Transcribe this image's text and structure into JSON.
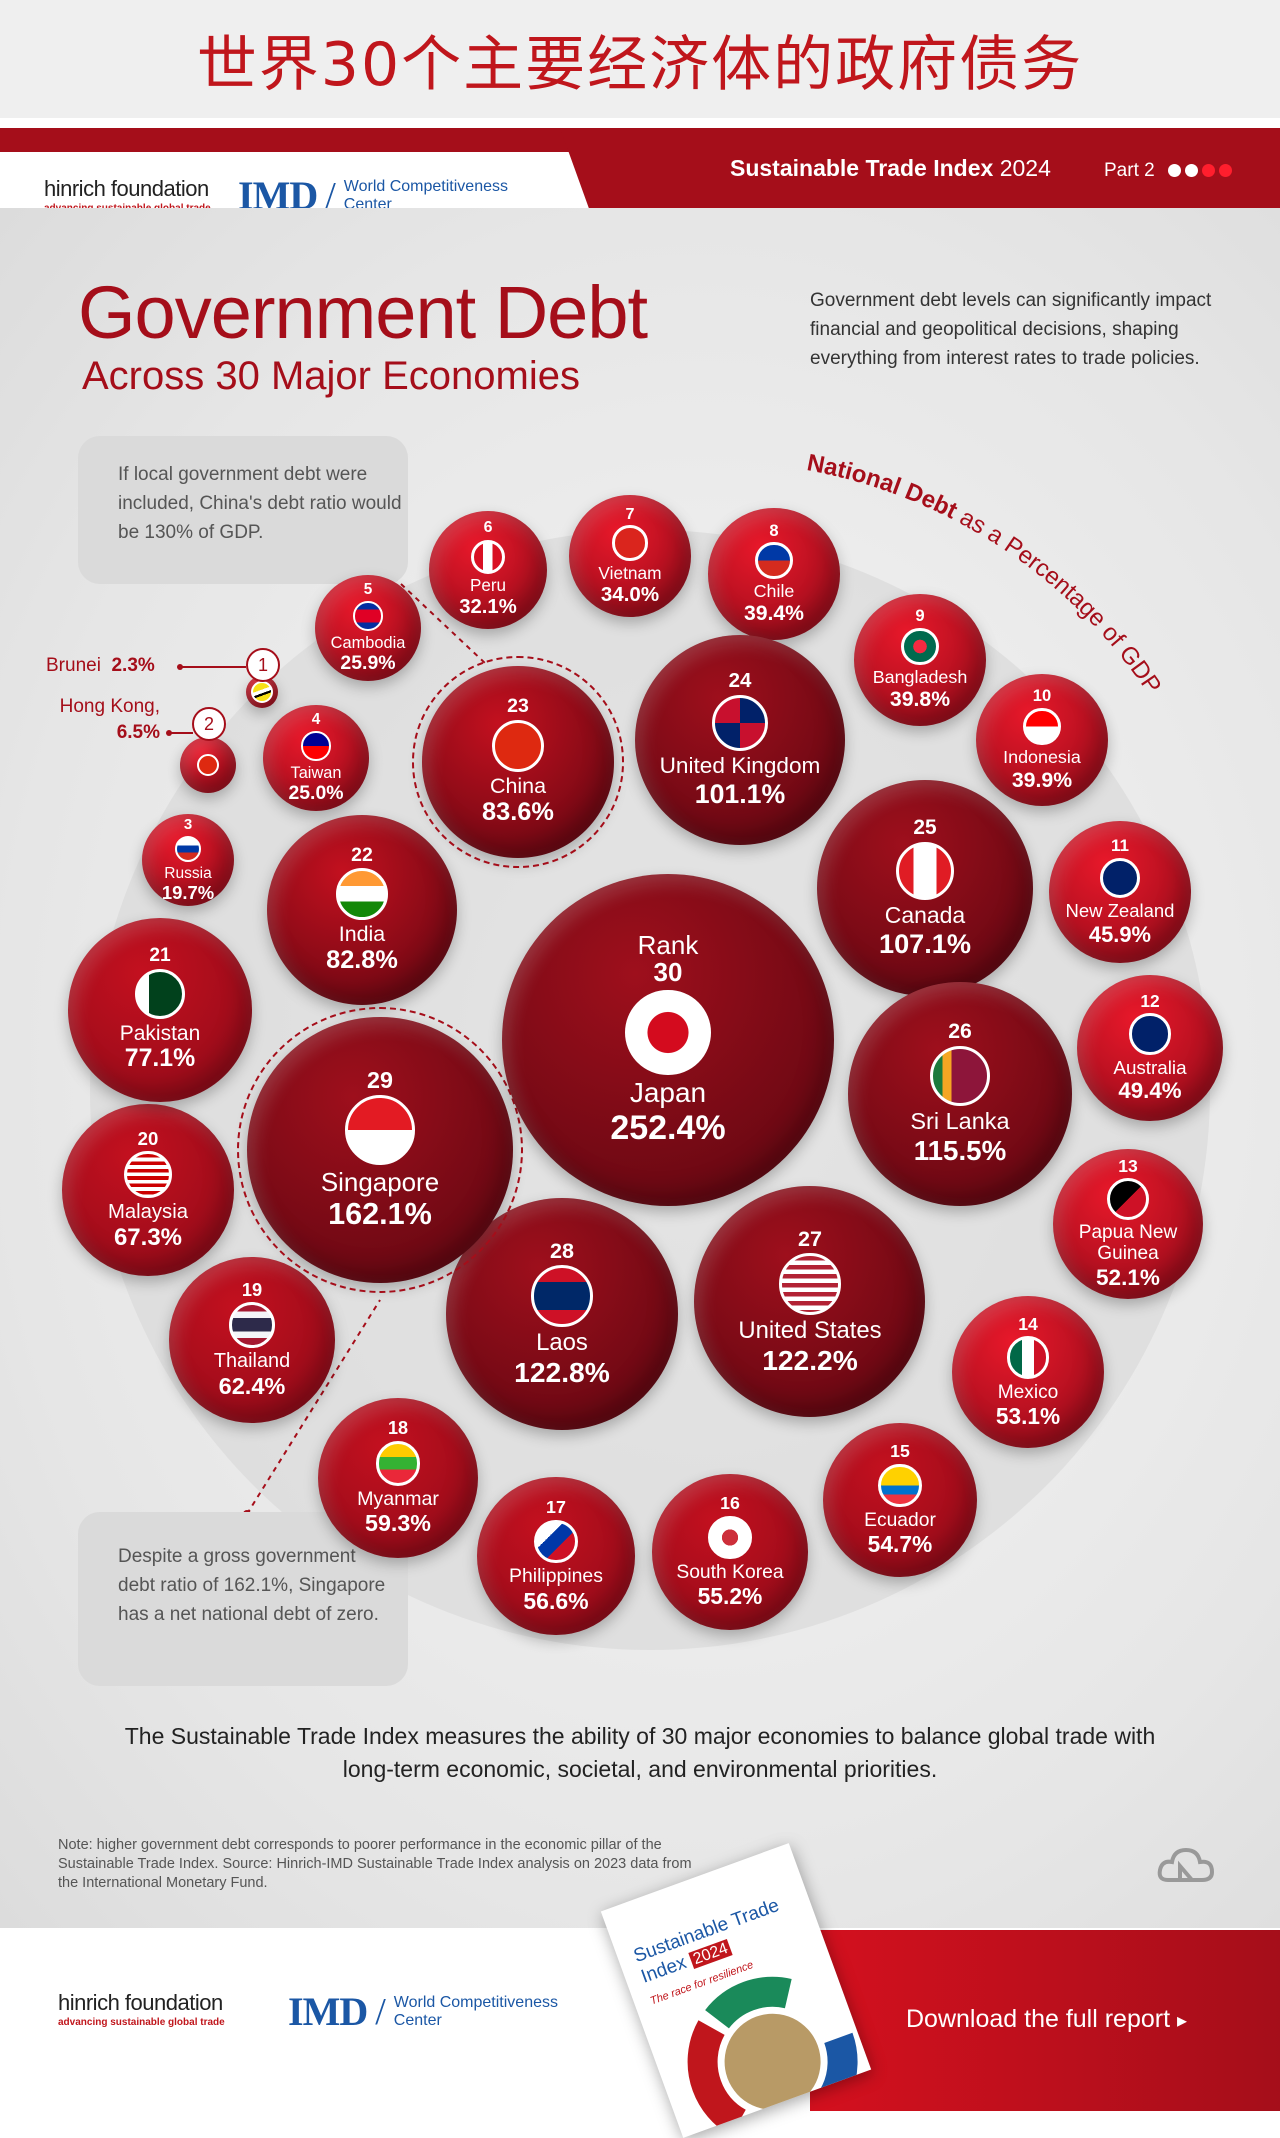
{
  "banner": {
    "title": "世界30个主要经济体的政府债务"
  },
  "header": {
    "hinrich_name": "hinrich foundation",
    "hinrich_tagline": "advancing sustainable global trade",
    "imd_mark": "IMD",
    "imd_line1": "World Competitiveness",
    "imd_line2": "Center",
    "sti_bold": "Sustainable Trade Index",
    "sti_year": "2024",
    "part_label": "Part 2",
    "dot_colors": [
      "#ffffff",
      "#ffffff",
      "#ff1e2d",
      "#ff1e2d"
    ]
  },
  "intro": "Government debt levels can significantly impact financial and geopolitical decisions, shaping everything from interest rates to trade policies.",
  "arc_label": {
    "bold": "National Debt",
    "rest": " as a Percentage of GDP"
  },
  "notes": {
    "china": "If local government debt were included, China's debt ratio would be 130% of GDP.",
    "singapore": "Despite a gross government debt ratio of 162.1%, Singapore has a net national debt of zero."
  },
  "chart_data": {
    "type": "bubble",
    "title": "Government Debt",
    "subtitle": "Across 30 Major Economies",
    "value_label": "National Debt as a Percentage of GDP",
    "rank_label": "Rank",
    "points": [
      {
        "rank": 1,
        "country": "Brunei",
        "value": 2.3,
        "display": "2.3%"
      },
      {
        "rank": 2,
        "country": "Hong Kong,",
        "value": 6.5,
        "display": "6.5%"
      },
      {
        "rank": 3,
        "country": "Russia",
        "value": 19.7,
        "display": "19.7%"
      },
      {
        "rank": 4,
        "country": "Taiwan",
        "value": 25.0,
        "display": "25.0%"
      },
      {
        "rank": 5,
        "country": "Cambodia",
        "value": 25.9,
        "display": "25.9%"
      },
      {
        "rank": 6,
        "country": "Peru",
        "value": 32.1,
        "display": "32.1%"
      },
      {
        "rank": 7,
        "country": "Vietnam",
        "value": 34.0,
        "display": "34.0%"
      },
      {
        "rank": 8,
        "country": "Chile",
        "value": 39.4,
        "display": "39.4%"
      },
      {
        "rank": 9,
        "country": "Bangladesh",
        "value": 39.8,
        "display": "39.8%"
      },
      {
        "rank": 10,
        "country": "Indonesia",
        "value": 39.9,
        "display": "39.9%"
      },
      {
        "rank": 11,
        "country": "New Zealand",
        "value": 45.9,
        "display": "45.9%"
      },
      {
        "rank": 12,
        "country": "Australia",
        "value": 49.4,
        "display": "49.4%"
      },
      {
        "rank": 13,
        "country": "Papua New Guinea",
        "value": 52.1,
        "display": "52.1%"
      },
      {
        "rank": 14,
        "country": "Mexico",
        "value": 53.1,
        "display": "53.1%"
      },
      {
        "rank": 15,
        "country": "Ecuador",
        "value": 54.7,
        "display": "54.7%"
      },
      {
        "rank": 16,
        "country": "South Korea",
        "value": 55.2,
        "display": "55.2%"
      },
      {
        "rank": 17,
        "country": "Philippines",
        "value": 56.6,
        "display": "56.6%"
      },
      {
        "rank": 18,
        "country": "Myanmar",
        "value": 59.3,
        "display": "59.3%"
      },
      {
        "rank": 19,
        "country": "Thailand",
        "value": 62.4,
        "display": "62.4%"
      },
      {
        "rank": 20,
        "country": "Malaysia",
        "value": 67.3,
        "display": "67.3%"
      },
      {
        "rank": 21,
        "country": "Pakistan",
        "value": 77.1,
        "display": "77.1%"
      },
      {
        "rank": 22,
        "country": "India",
        "value": 82.8,
        "display": "82.8%"
      },
      {
        "rank": 23,
        "country": "China",
        "value": 83.6,
        "display": "83.6%"
      },
      {
        "rank": 24,
        "country": "United Kingdom",
        "value": 101.1,
        "display": "101.1%"
      },
      {
        "rank": 25,
        "country": "Canada",
        "value": 107.1,
        "display": "107.1%"
      },
      {
        "rank": 26,
        "country": "Sri Lanka",
        "value": 115.5,
        "display": "115.5%"
      },
      {
        "rank": 27,
        "country": "United States",
        "value": 122.2,
        "display": "122.2%"
      },
      {
        "rank": 28,
        "country": "Laos",
        "value": 122.8,
        "display": "122.8%"
      },
      {
        "rank": 29,
        "country": "Singapore",
        "value": 162.1,
        "display": "162.1%"
      },
      {
        "rank": 30,
        "country": "Japan",
        "value": 252.4,
        "display": "252.4%"
      }
    ]
  },
  "footer": {
    "statement": "The Sustainable Trade Index measures the ability of 30 major economies to balance global trade with long-term economic, societal, and environmental priorities.",
    "source_note": "Note: higher government debt corresponds to poorer performance in the economic pillar of the Sustainable Trade Index. Source: Hinrich-IMD Sustainable Trade Index analysis on 2023 data from the International Monetary Fund.",
    "download": "Download the full report",
    "book_title": "Sustainable Trade Index",
    "book_year": "2024",
    "book_subtitle": "The race for resilience"
  }
}
